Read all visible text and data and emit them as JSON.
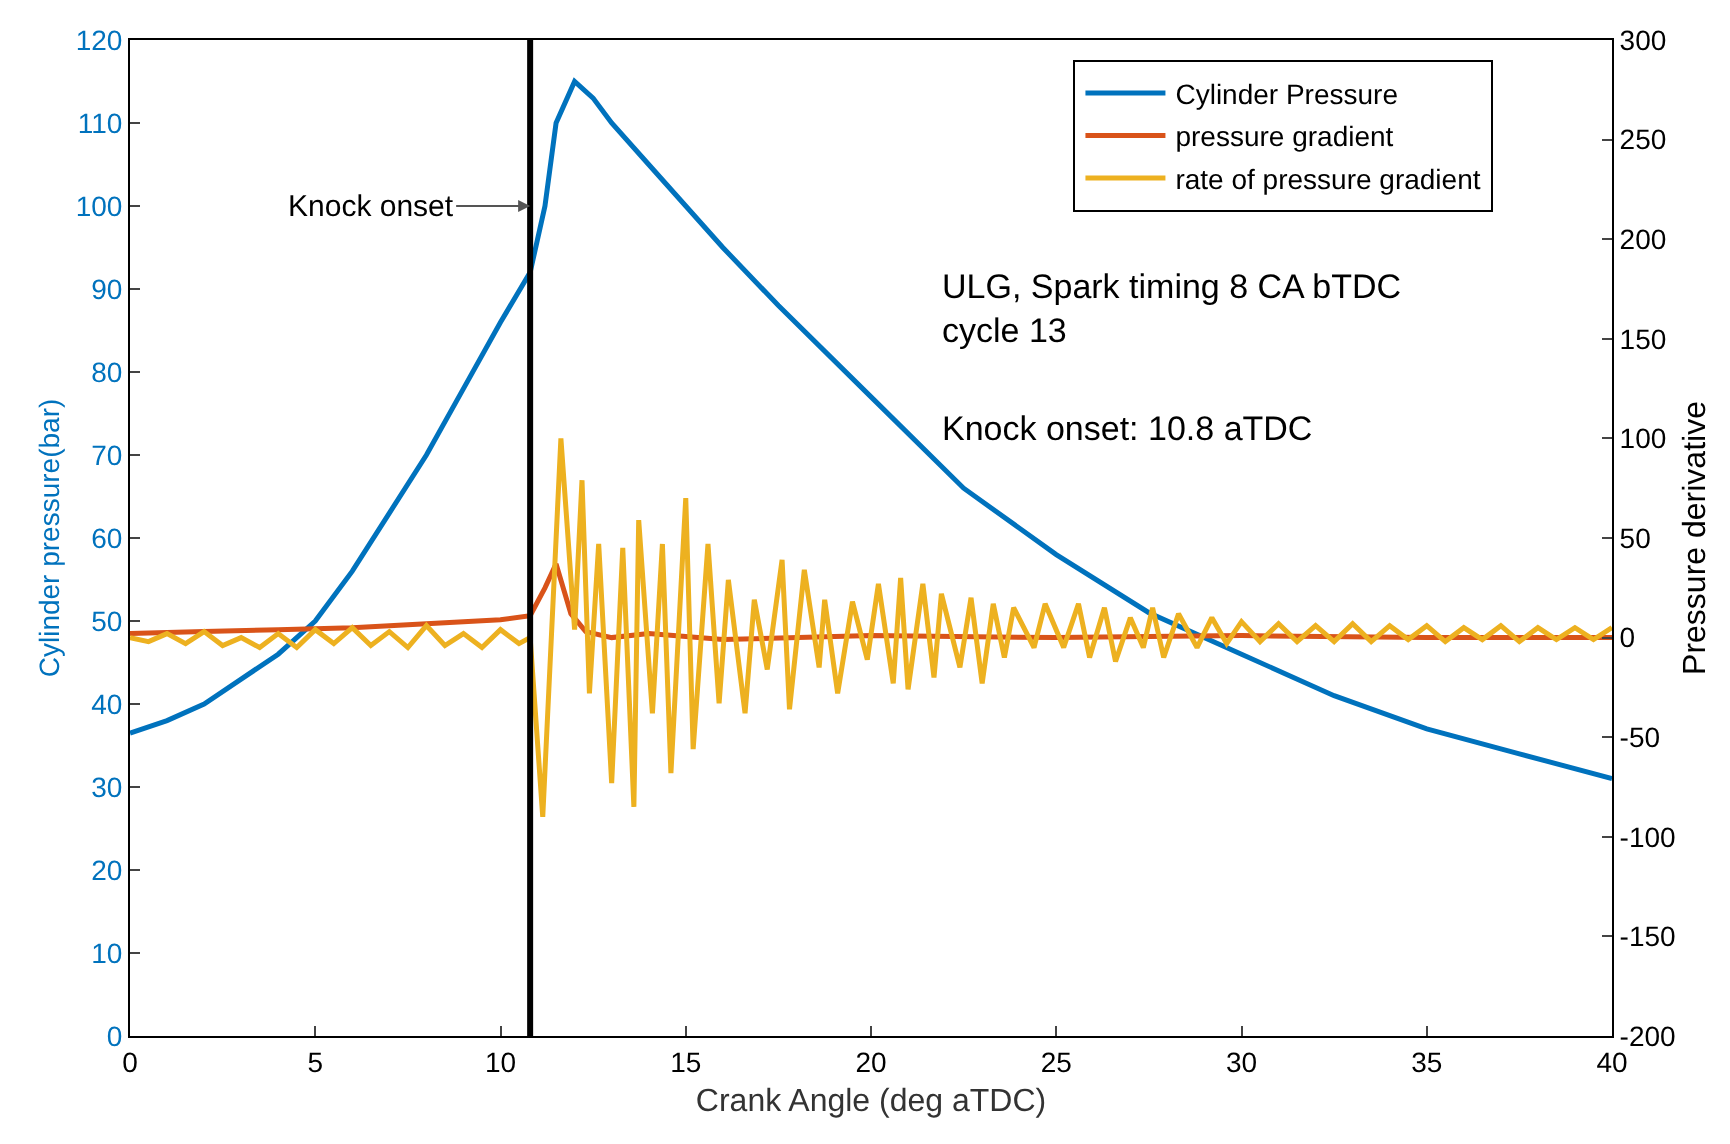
{
  "chart_data": {
    "type": "line",
    "xlabel": "Crank Angle (deg aTDC)",
    "ylabel": "Cylinder pressure(bar)",
    "y2label": "Pressure derivative",
    "xlim": [
      0,
      40
    ],
    "xticks": [
      0,
      5,
      10,
      15,
      20,
      25,
      30,
      35,
      40
    ],
    "ylim": [
      0,
      120
    ],
    "yticks": [
      0,
      10,
      20,
      30,
      40,
      50,
      60,
      70,
      80,
      90,
      100,
      110,
      120
    ],
    "y2lim": [
      -200,
      300
    ],
    "y2ticks": [
      -200,
      -150,
      -100,
      -50,
      0,
      50,
      100,
      150,
      200,
      250,
      300
    ],
    "legend": "top right",
    "marker": "none",
    "line_style": "solid",
    "series": [
      {
        "name": "Cylinder Pressure",
        "color": "#0072bd",
        "x": [
          0,
          1,
          2,
          3,
          4,
          5,
          6,
          7,
          8,
          9,
          10,
          10.8,
          11.2,
          11.5,
          12,
          12.5,
          13,
          14,
          15,
          16,
          17.5,
          20,
          22.5,
          25,
          27.5,
          30,
          32.5,
          35,
          37.5,
          40
        ],
        "values": [
          36.5,
          38,
          40,
          43,
          46,
          50,
          56,
          63,
          70,
          78,
          86,
          92,
          100,
          110,
          115,
          113,
          110,
          105,
          100,
          95,
          88,
          77,
          66,
          58,
          51,
          46,
          41,
          37,
          34,
          31
        ]
      },
      {
        "name": "pressure gradient",
        "color": "#d95319",
        "x": [
          0,
          2,
          4,
          6,
          8,
          10,
          10.8,
          11.2,
          11.5,
          11.9,
          12.3,
          13,
          14,
          16,
          20,
          25,
          30,
          35,
          40
        ],
        "values": [
          2,
          3,
          4,
          5,
          7,
          9,
          11,
          25,
          37,
          12,
          3,
          0,
          2,
          -1,
          1,
          0,
          1,
          0,
          0
        ],
        "axis": "y2"
      },
      {
        "name": "rate of pressure gradient",
        "color": "#edb120",
        "x": [
          0,
          0.5,
          1,
          1.5,
          2,
          2.5,
          3,
          3.5,
          4,
          4.5,
          5,
          5.5,
          6,
          6.5,
          7,
          7.5,
          8,
          8.5,
          9,
          9.5,
          10,
          10.5,
          10.8,
          11.14,
          11.63,
          12.0,
          12.2,
          12.4,
          12.65,
          13.0,
          13.3,
          13.6,
          13.73,
          14.1,
          14.37,
          14.6,
          15.0,
          15.2,
          15.6,
          15.9,
          16.15,
          16.6,
          16.85,
          17.2,
          17.6,
          17.8,
          18.2,
          18.6,
          18.75,
          19.1,
          19.5,
          19.9,
          20.2,
          20.6,
          20.8,
          21.0,
          21.4,
          21.7,
          21.9,
          22.4,
          22.7,
          23.0,
          23.3,
          23.6,
          23.85,
          24.4,
          24.7,
          25.2,
          25.6,
          25.9,
          26.3,
          26.6,
          27.0,
          27.35,
          27.6,
          27.9,
          28.3,
          28.8,
          29.2,
          29.6,
          30.0,
          30.5,
          31.0,
          31.5,
          32.0,
          32.5,
          33.0,
          33.5,
          34.0,
          34.5,
          35.0,
          35.5,
          36.0,
          36.5,
          37.0,
          37.5,
          38.0,
          38.5,
          39.0,
          39.5,
          40
        ],
        "values": [
          0,
          -2,
          2,
          -3,
          3,
          -4,
          0,
          -5,
          2,
          -5,
          4,
          -3,
          5,
          -4,
          3,
          -5,
          6,
          -4,
          2,
          -5,
          4,
          -3,
          0,
          -90,
          100,
          4,
          79,
          -28,
          47,
          -73,
          45,
          -85,
          59,
          -38,
          47,
          -68,
          70,
          -56,
          47,
          -33,
          29,
          -38,
          19,
          -16,
          39,
          -36,
          34,
          -15,
          19,
          -28,
          18,
          -11,
          27,
          -23,
          30,
          -26,
          27,
          -20,
          22,
          -15,
          20,
          -23,
          17,
          -10,
          15,
          -5,
          17,
          -5,
          17,
          -10,
          15,
          -12,
          10,
          -5,
          15,
          -10,
          12,
          -5,
          10,
          -3,
          8,
          -2,
          7,
          -2,
          6,
          -2,
          7,
          -2,
          6,
          -1,
          6,
          -2,
          5,
          -1,
          6,
          -2,
          5,
          -1,
          5,
          -1,
          5
        ],
        "axis": "y2"
      }
    ],
    "ref_lines": [
      {
        "axis": "x",
        "value": 10.8,
        "color": "#000000",
        "line_style": "solid"
      }
    ],
    "annotations": [
      {
        "text": "Knock onset",
        "x": 10.8,
        "y": 100
      },
      "ULG, Spark timing 8 CA bTDC\ncycle 13",
      "Knock onset: 10.8 aTDC"
    ]
  }
}
